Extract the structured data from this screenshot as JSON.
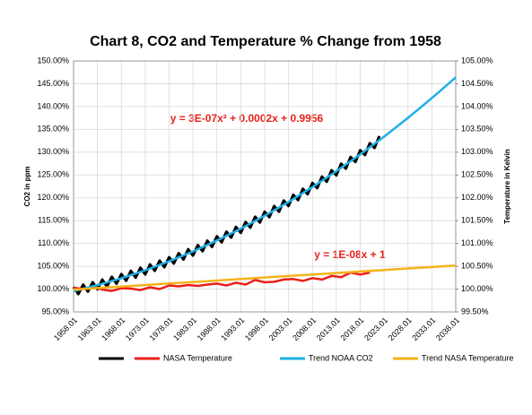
{
  "chart_data": {
    "type": "line",
    "title": "Chart 8, CO2 and Temperature % Change from 1958",
    "y_label": "CO2 in ppm",
    "y2_label": "Temperature in Kelvin",
    "annotations": [
      "y = 3E-07x² + 0.0002x + 0.9956",
      "y = 1E-08x + 1"
    ],
    "xlim": [
      1958,
      2038
    ],
    "xticks": [
      {
        "value": 1958,
        "label": "1958.01"
      },
      {
        "value": 1963,
        "label": "1963.01"
      },
      {
        "value": 1968,
        "label": "1968.01"
      },
      {
        "value": 1973,
        "label": "1973.01"
      },
      {
        "value": 1978,
        "label": "1978.01"
      },
      {
        "value": 1983,
        "label": "1983.01"
      },
      {
        "value": 1988,
        "label": "1988.01"
      },
      {
        "value": 1993,
        "label": "1993.01"
      },
      {
        "value": 1998,
        "label": "1998.01"
      },
      {
        "value": 2003,
        "label": "2003.01"
      },
      {
        "value": 2008,
        "label": "2008.01"
      },
      {
        "value": 2013,
        "label": "2013.01"
      },
      {
        "value": 2018,
        "label": "2018.01"
      },
      {
        "value": 2023,
        "label": "2023.01"
      },
      {
        "value": 2028,
        "label": "2028.01"
      },
      {
        "value": 2033,
        "label": "2033.01"
      },
      {
        "value": 2038,
        "label": "2038.01"
      }
    ],
    "ylim": [
      95,
      150
    ],
    "yticks": [
      {
        "value": 95,
        "label": "95.00%"
      },
      {
        "value": 100,
        "label": "100.00%"
      },
      {
        "value": 105,
        "label": "105.00%"
      },
      {
        "value": 110,
        "label": "110.00%"
      },
      {
        "value": 115,
        "label": "115.00%"
      },
      {
        "value": 120,
        "label": "120.00%"
      },
      {
        "value": 125,
        "label": "125.00%"
      },
      {
        "value": 130,
        "label": "130.00%"
      },
      {
        "value": 135,
        "label": "135.00%"
      },
      {
        "value": 140,
        "label": "140.00%"
      },
      {
        "value": 145,
        "label": "145.00%"
      },
      {
        "value": 150,
        "label": "150.00%"
      }
    ],
    "y2lim": [
      99.5,
      105
    ],
    "y2ticks": [
      {
        "value": 99.5,
        "label": "99.50%"
      },
      {
        "value": 100,
        "label": "100.00%"
      },
      {
        "value": 100.5,
        "label": "100.50%"
      },
      {
        "value": 101,
        "label": "101.00%"
      },
      {
        "value": 101.5,
        "label": "101.50%"
      },
      {
        "value": 102,
        "label": "102.00%"
      },
      {
        "value": 102.5,
        "label": "102.50%"
      },
      {
        "value": 103,
        "label": "103.00%"
      },
      {
        "value": 103.5,
        "label": "103.50%"
      },
      {
        "value": 104,
        "label": "104.00%"
      },
      {
        "value": 104.5,
        "label": "104.50%"
      },
      {
        "value": 105,
        "label": "105.00%"
      }
    ],
    "grid": true,
    "legend": "bottom",
    "series": [
      {
        "color": "#000000",
        "width": 3,
        "x": [
          1958,
          1959,
          1960,
          1961,
          1962,
          1963,
          1964,
          1965,
          1966,
          1967,
          1968,
          1969,
          1970,
          1971,
          1972,
          1973,
          1974,
          1975,
          1976,
          1977,
          1978,
          1979,
          1980,
          1981,
          1982,
          1983,
          1984,
          1985,
          1986,
          1987,
          1988,
          1989,
          1990,
          1991,
          1992,
          1993,
          1994,
          1995,
          1996,
          1997,
          1998,
          1999,
          2000,
          2001,
          2002,
          2003,
          2004,
          2005,
          2006,
          2007,
          2008,
          2009,
          2010,
          2011,
          2012,
          2013,
          2014,
          2015,
          2016,
          2017,
          2018,
          2019,
          2020,
          2021,
          2022
        ],
        "values": [
          100.46,
          98.92,
          100.98,
          99.45,
          101.51,
          99.97,
          102.07,
          100.58,
          102.68,
          101.19,
          103.29,
          101.84,
          103.99,
          102.53,
          104.68,
          103.23,
          105.42,
          104.01,
          106.21,
          104.8,
          106.99,
          105.62,
          107.86,
          106.49,
          108.73,
          107.36,
          109.64,
          108.32,
          110.59,
          109.27,
          111.55,
          110.27,
          112.59,
          111.31,
          113.63,
          112.35,
          114.71,
          113.48,
          115.84,
          114.61,
          116.97,
          115.78,
          118.19,
          116.99,
          119.4,
          118.21,
          120.66,
          119.51,
          121.96,
          120.81,
          123.26,
          122.15,
          124.65,
          123.54,
          126.04,
          124.93,
          127.47,
          126.4,
          128.94,
          127.87,
          130.41,
          129.39,
          131.97,
          130.95,
          133.53
        ]
      },
      {
        "name": "NASA Temperature",
        "color": "#e8211a",
        "width": 2.5,
        "x": [
          1958,
          1960,
          1962,
          1964,
          1966,
          1968,
          1970,
          1972,
          1974,
          1976,
          1978,
          1980,
          1982,
          1984,
          1986,
          1988,
          1990,
          1992,
          1994,
          1996,
          1998,
          2000,
          2002,
          2004,
          2006,
          2008,
          2010,
          2012,
          2014,
          2016,
          2018,
          2020
        ],
        "values": [
          100.3,
          100.0,
          100.5,
          99.9,
          99.6,
          100.2,
          100.1,
          99.8,
          100.4,
          100.0,
          100.8,
          100.6,
          100.9,
          100.7,
          101.0,
          101.2,
          100.8,
          101.4,
          101.0,
          102.0,
          101.5,
          101.6,
          102.1,
          102.2,
          101.8,
          102.4,
          102.1,
          102.9,
          102.6,
          103.6,
          103.2,
          103.6
        ]
      },
      {
        "name": "Trend NOAA CO2",
        "color": "#1fb0e6",
        "width": 2.5,
        "x": [
          1958,
          1963,
          1968,
          1973,
          1978,
          1983,
          1988,
          1993,
          1998,
          2003,
          2008,
          2013,
          2018,
          2023,
          2028,
          2033,
          2038
        ],
        "values": [
          99.56,
          100.87,
          102.39,
          104.13,
          106.09,
          108.26,
          110.65,
          113.25,
          116.07,
          119.11,
          122.36,
          125.83,
          129.51,
          133.41,
          137.53,
          141.86,
          146.41
        ]
      },
      {
        "name": "Trend NASA Temperature",
        "color": "#f5b21b",
        "width": 2.5,
        "x": [
          1958,
          1963,
          1968,
          1973,
          1978,
          1983,
          1988,
          1993,
          1998,
          2003,
          2008,
          2013,
          2018,
          2023,
          2028,
          2033,
          2038
        ],
        "values": [
          99.9,
          100.23,
          100.56,
          100.89,
          101.22,
          101.55,
          101.88,
          102.21,
          102.54,
          102.87,
          103.2,
          103.53,
          103.86,
          104.19,
          104.52,
          104.85,
          105.18
        ]
      }
    ]
  }
}
